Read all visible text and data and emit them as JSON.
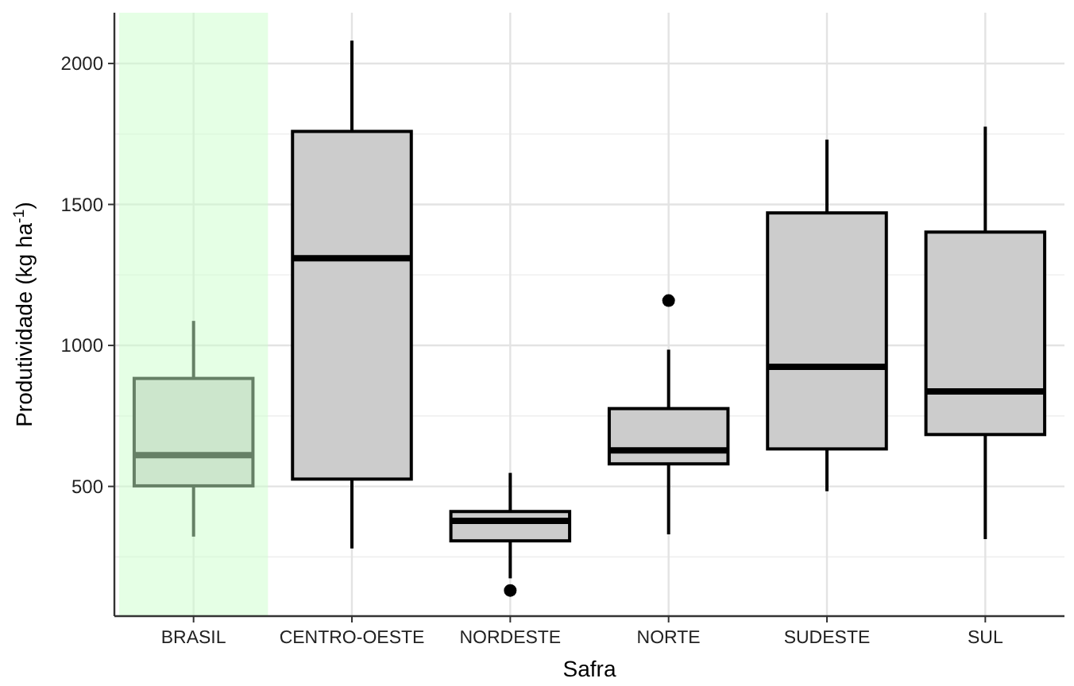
{
  "chart_data": {
    "type": "box",
    "xlabel": "Safra",
    "ylabel": "Produtividade (kg ha$^{-1}$)",
    "categories": [
      "BRASIL",
      "CENTRO-OESTE",
      "NORDESTE",
      "NORTE",
      "SUDESTE",
      "SUL"
    ],
    "series": [
      {
        "color": "#cccccc",
        "boxes": [
          {
            "low": 322,
            "q1": 502,
            "median": 611,
            "q3": 883,
            "high": 1087
          },
          {
            "low": 280,
            "q1": 526,
            "median": 1309,
            "q3": 1759,
            "high": 2081
          },
          {
            "low": 174,
            "q1": 307,
            "median": 378,
            "q3": 411,
            "high": 548,
            "outliers": [
              131
            ]
          },
          {
            "low": 330,
            "q1": 580,
            "median": 628,
            "q3": 776,
            "high": 985,
            "outliers": [
              1159
            ]
          },
          {
            "low": 483,
            "q1": 633,
            "median": 924,
            "q3": 1470,
            "high": 1730
          },
          {
            "low": 313,
            "q1": 684,
            "median": 837,
            "q3": 1402,
            "high": 1776
          }
        ]
      }
    ],
    "bands": [
      {
        "axis": "x",
        "from": "BRASIL",
        "to": "BRASIL",
        "color": "#ccffcc"
      }
    ],
    "ylim": [
      40,
      2180
    ],
    "yticks": [
      500,
      1000,
      1500,
      2000
    ],
    "grid": true
  }
}
